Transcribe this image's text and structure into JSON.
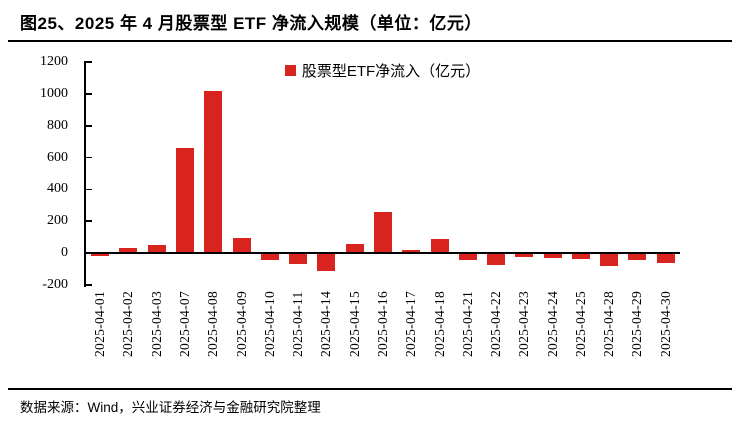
{
  "title": "图25、2025 年 4 月股票型 ETF 净流入规模（单位：亿元）",
  "legend": {
    "label": "股票型ETF净流入（亿元）"
  },
  "source_note": "数据来源：Wind，兴业证券经济与金融研究院整理",
  "colors": {
    "bar": "#d9231f",
    "axis": "#000000"
  },
  "chart_data": {
    "type": "bar",
    "title": "2025 年 4 月股票型 ETF 净流入规模",
    "unit": "亿元",
    "legend_entries": [
      "股票型ETF净流入（亿元）"
    ],
    "legend_position": "top-center",
    "grid": false,
    "ylim": [
      -200,
      1200
    ],
    "yticks": [
      1200,
      1000,
      800,
      600,
      400,
      200,
      0,
      -200
    ],
    "categories": [
      "2025-04-01",
      "2025-04-02",
      "2025-04-03",
      "2025-04-07",
      "2025-04-08",
      "2025-04-09",
      "2025-04-10",
      "2025-04-11",
      "2025-04-14",
      "2025-04-15",
      "2025-04-16",
      "2025-04-17",
      "2025-04-18",
      "2025-04-21",
      "2025-04-22",
      "2025-04-23",
      "2025-04-24",
      "2025-04-25",
      "2025-04-28",
      "2025-04-29",
      "2025-04-30"
    ],
    "values": [
      -15,
      35,
      50,
      660,
      1015,
      95,
      -40,
      -70,
      -115,
      55,
      260,
      20,
      90,
      -40,
      -75,
      -25,
      -30,
      -35,
      -80,
      -45,
      -65
    ]
  }
}
